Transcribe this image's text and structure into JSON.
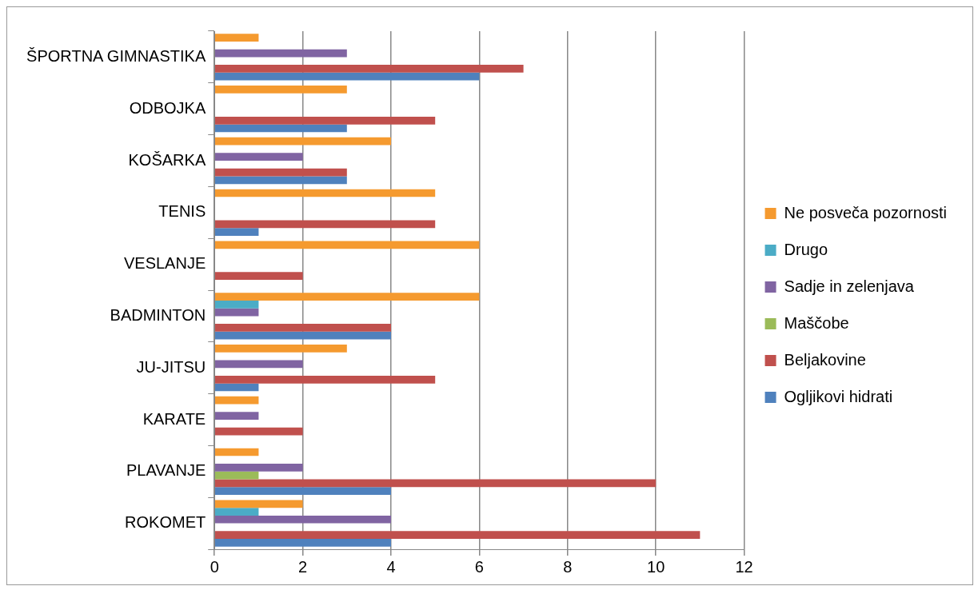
{
  "chart_data": {
    "type": "bar",
    "orientation": "horizontal",
    "categories": [
      "ŠPORTNA GIMNASTIKA",
      "ODBOJKA",
      "KOŠARKA",
      "TENIS",
      "VESLANJE",
      "BADMINTON",
      "JU-JITSU",
      "KARATE",
      "PLAVANJE",
      "ROKOMET"
    ],
    "series": [
      {
        "name": "Ne posveča pozornosti",
        "color": "#f59a2f",
        "values": [
          1,
          3,
          4,
          5,
          6,
          6,
          3,
          1,
          1,
          2
        ]
      },
      {
        "name": "Drugo",
        "color": "#4bacc6",
        "values": [
          0,
          0,
          0,
          0,
          0,
          1,
          0,
          0,
          0,
          1
        ]
      },
      {
        "name": "Sadje in zelenjava",
        "color": "#8064a2",
        "values": [
          3,
          0,
          2,
          0,
          0,
          1,
          2,
          1,
          2,
          4
        ]
      },
      {
        "name": "Maščobe",
        "color": "#9bbb59",
        "values": [
          0,
          0,
          0,
          0,
          0,
          0,
          0,
          0,
          1,
          0
        ]
      },
      {
        "name": "Beljakovine",
        "color": "#c0504d",
        "values": [
          7,
          5,
          3,
          5,
          2,
          4,
          5,
          2,
          10,
          11
        ]
      },
      {
        "name": "Ogljikovi hidrati",
        "color": "#4f81bd",
        "values": [
          6,
          3,
          3,
          1,
          0,
          4,
          1,
          0,
          4,
          4
        ]
      }
    ],
    "xlim": [
      0,
      12
    ],
    "xticks": [
      0,
      2,
      4,
      6,
      8,
      10,
      12
    ],
    "grid": "x",
    "legend": "right"
  }
}
